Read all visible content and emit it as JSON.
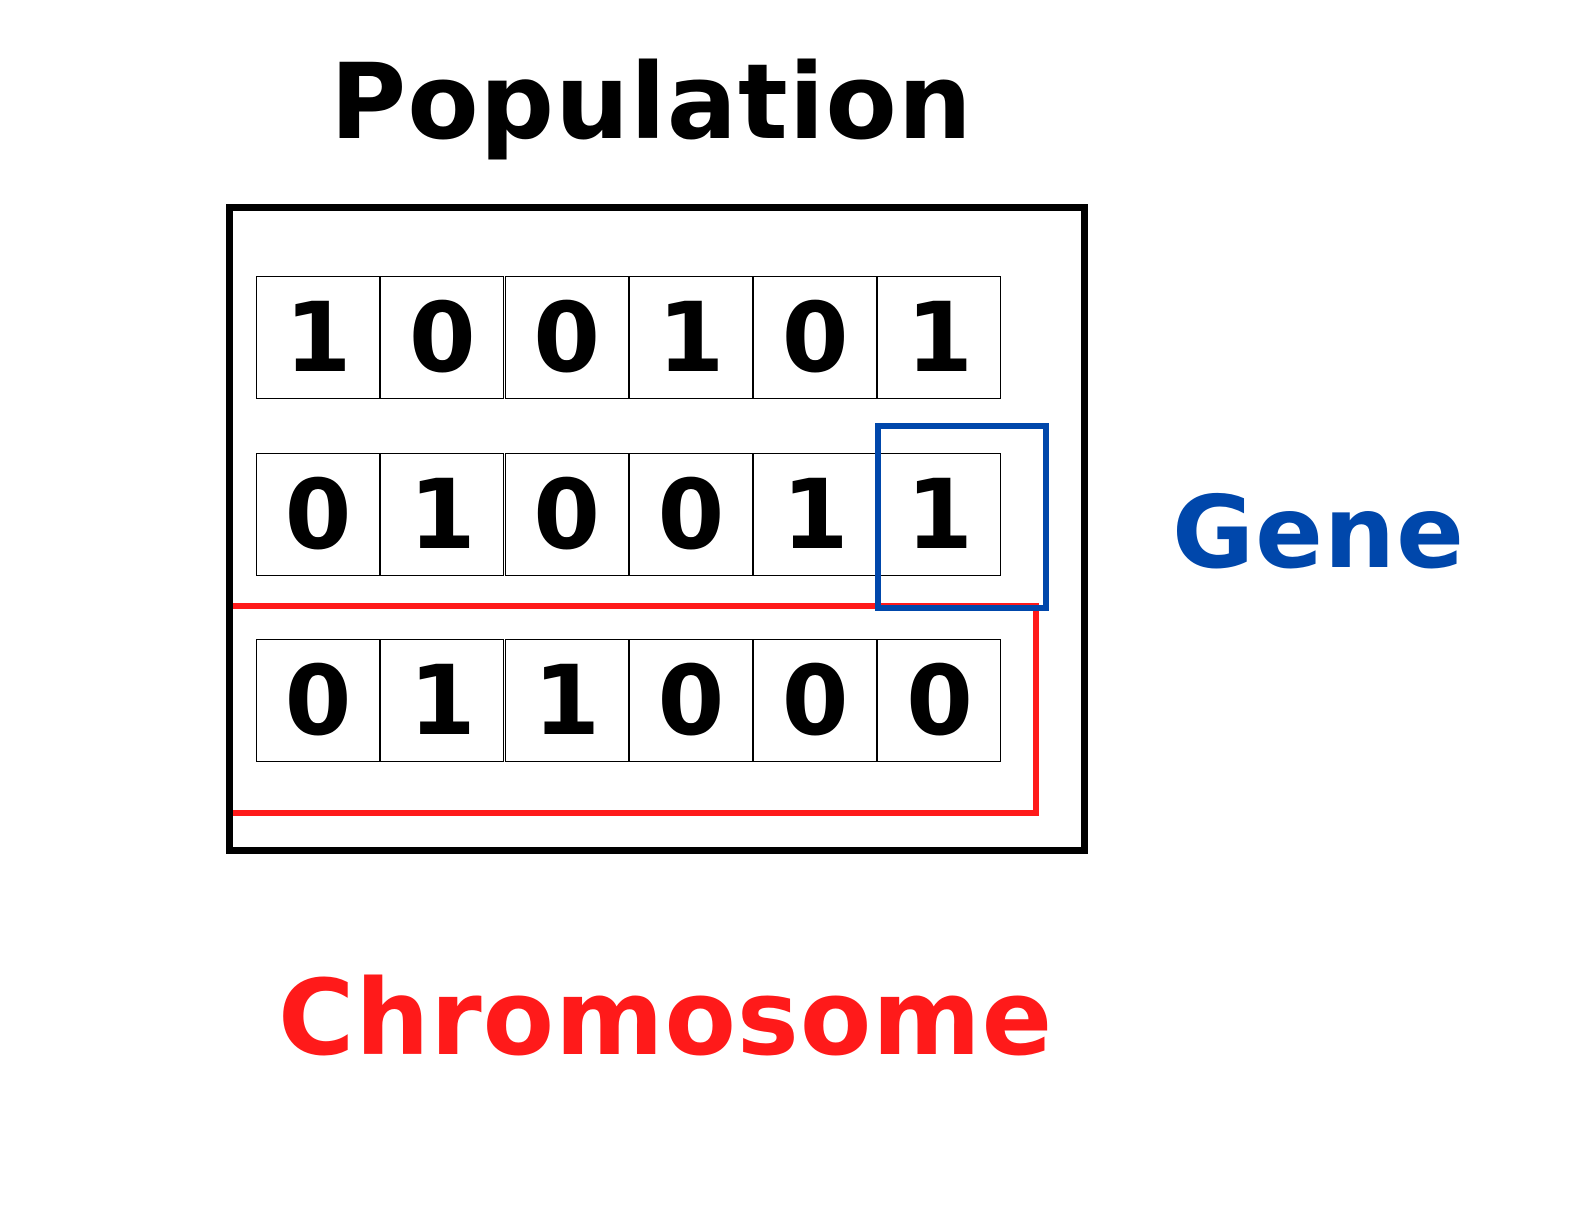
{
  "title": "Population",
  "gene_label": "Gene",
  "chromosome_label": "Chromosome",
  "colors": {
    "population": "#000000",
    "gene": "#0047ab",
    "chromosome": "#ff1a1a"
  },
  "chromosomes": [
    [
      "1",
      "0",
      "0",
      "1",
      "0",
      "1"
    ],
    [
      "0",
      "1",
      "0",
      "0",
      "1",
      "1"
    ],
    [
      "0",
      "1",
      "1",
      "0",
      "0",
      "0"
    ]
  ]
}
